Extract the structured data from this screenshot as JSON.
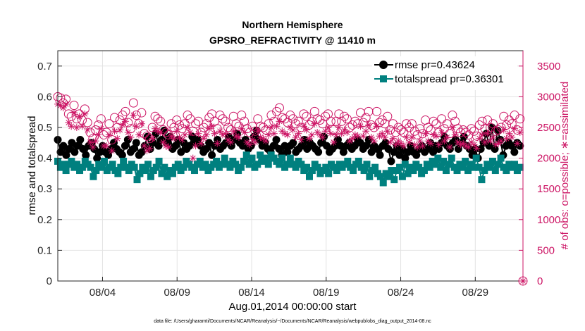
{
  "chart_data": {
    "type": "line",
    "title": [
      "Northern Hemisphere",
      "GPSRO_REFRACTIVITY @ 11410 m"
    ],
    "xlabel": "Aug.01,2014 00:00:00 start",
    "ylabel": "rmse and totalspread",
    "ylabel_right": "# of obs: o=possible; ∗=assimilated",
    "ylim": [
      0,
      0.75
    ],
    "ylim_right": [
      0,
      3750
    ],
    "xlim": [
      1,
      32.2
    ],
    "yticks": [
      "0",
      "0.1",
      "0.2",
      "0.3",
      "0.4",
      "0.5",
      "0.6",
      "0.7"
    ],
    "yticks_right": [
      "0",
      "500",
      "1000",
      "1500",
      "2000",
      "2500",
      "3000",
      "3500"
    ],
    "xticks": [
      "08/04",
      "08/09",
      "08/14",
      "08/19",
      "08/24",
      "08/29"
    ],
    "xtick_days": [
      4,
      9,
      14,
      19,
      24,
      29
    ],
    "grid": true,
    "legend_position": "top-right",
    "series": [
      {
        "name": "rmse pr=0.43624",
        "color": "#000000",
        "marker": "circle",
        "axis": "left",
        "values": [
          0.46,
          0.42,
          0.44,
          0.41,
          0.43,
          0.45,
          0.42,
          0.44,
          0.46,
          0.43,
          0.41,
          0.44,
          0.45,
          0.43,
          0.4,
          0.42,
          0.44,
          0.42,
          0.41,
          0.43,
          0.45,
          0.43,
          0.42,
          0.41,
          0.44,
          0.46,
          0.42,
          0.43,
          0.45,
          0.41,
          0.42,
          0.44,
          0.47,
          0.43,
          0.45,
          0.48,
          0.44,
          0.46,
          0.49,
          0.45,
          0.47,
          0.43,
          0.44,
          0.46,
          0.42,
          0.45,
          0.43,
          0.44,
          0.47,
          0.45,
          0.46,
          0.44,
          0.42,
          0.43,
          0.45,
          0.41,
          0.44,
          0.46,
          0.43,
          0.44,
          0.45,
          0.47,
          0.44,
          0.46,
          0.48,
          0.45,
          0.44,
          0.46,
          0.43,
          0.44,
          0.47,
          0.49,
          0.46,
          0.44,
          0.45,
          0.43,
          0.42,
          0.44,
          0.46,
          0.43,
          0.41,
          0.44,
          0.42,
          0.44,
          0.45,
          0.42,
          0.43,
          0.44,
          0.46,
          0.43,
          0.45,
          0.44,
          0.43,
          0.42,
          0.45,
          0.47,
          0.44,
          0.42,
          0.43,
          0.44,
          0.46,
          0.44,
          0.42,
          0.44,
          0.45,
          0.43,
          0.44,
          0.46,
          0.45,
          0.43,
          0.44,
          0.46,
          0.42,
          0.44,
          0.43,
          0.41,
          0.44,
          0.45,
          0.43,
          0.39,
          0.42,
          0.44,
          0.41,
          0.43,
          0.4,
          0.42,
          0.44,
          0.42,
          0.41,
          0.43,
          0.44,
          0.42,
          0.43,
          0.45,
          0.42,
          0.44,
          0.43,
          0.45,
          0.47,
          0.44,
          0.43,
          0.45,
          0.46,
          0.43,
          0.45,
          0.47,
          0.44,
          0.43,
          0.41,
          0.43,
          0.4,
          0.43,
          0.45,
          0.48,
          0.44,
          0.5,
          0.43,
          0.49,
          0.46,
          0.41,
          0.44,
          0.45,
          0.44,
          0.42,
          0.45,
          0.44
        ]
      },
      {
        "name": "totalspread pr=0.36301",
        "color": "#00807f",
        "marker": "square",
        "axis": "left",
        "values": [
          0.39,
          0.37,
          0.38,
          0.36,
          0.38,
          0.39,
          0.37,
          0.38,
          0.36,
          0.37,
          0.39,
          0.38,
          0.37,
          0.34,
          0.36,
          0.38,
          0.37,
          0.39,
          0.36,
          0.37,
          0.38,
          0.36,
          0.35,
          0.37,
          0.39,
          0.37,
          0.36,
          0.38,
          0.37,
          0.33,
          0.35,
          0.37,
          0.36,
          0.38,
          0.34,
          0.36,
          0.37,
          0.39,
          0.35,
          0.37,
          0.34,
          0.36,
          0.35,
          0.37,
          0.38,
          0.36,
          0.37,
          0.39,
          0.38,
          0.37,
          0.36,
          0.38,
          0.39,
          0.37,
          0.38,
          0.36,
          0.37,
          0.38,
          0.39,
          0.37,
          0.38,
          0.4,
          0.38,
          0.37,
          0.39,
          0.38,
          0.36,
          0.37,
          0.39,
          0.41,
          0.38,
          0.4,
          0.37,
          0.38,
          0.41,
          0.39,
          0.4,
          0.38,
          0.41,
          0.4,
          0.39,
          0.38,
          0.4,
          0.37,
          0.38,
          0.4,
          0.38,
          0.37,
          0.39,
          0.38,
          0.36,
          0.37,
          0.34,
          0.36,
          0.38,
          0.37,
          0.35,
          0.36,
          0.37,
          0.35,
          0.38,
          0.37,
          0.36,
          0.38,
          0.37,
          0.38,
          0.39,
          0.37,
          0.36,
          0.38,
          0.39,
          0.37,
          0.36,
          0.38,
          0.34,
          0.36,
          0.37,
          0.35,
          0.34,
          0.32,
          0.35,
          0.34,
          0.36,
          0.33,
          0.36,
          0.37,
          0.34,
          0.38,
          0.35,
          0.37,
          0.36,
          0.38,
          0.37,
          0.35,
          0.36,
          0.38,
          0.37,
          0.39,
          0.38,
          0.4,
          0.37,
          0.39,
          0.36,
          0.38,
          0.4,
          0.37,
          0.36,
          0.38,
          0.37,
          0.39,
          0.36,
          0.38,
          0.37,
          0.4,
          0.37,
          0.33,
          0.36,
          0.38,
          0.37,
          0.39,
          0.36,
          0.38,
          0.4,
          0.37,
          0.36,
          0.38,
          0.37,
          0.38,
          0.36,
          0.37
        ]
      },
      {
        "name": "possible",
        "color": "#cc1464",
        "marker": "open-circle",
        "axis": "right",
        "values": [
          3000,
          2980,
          2900,
          2960,
          2720,
          2680,
          2860,
          2640,
          2720,
          2620,
          2800,
          2580,
          2420,
          2320,
          2460,
          2540,
          2640,
          2380,
          2420,
          2560,
          2300,
          2660,
          2500,
          2620,
          2700,
          2760,
          2580,
          2480,
          2900,
          2700,
          2560,
          2740,
          2400,
          2360,
          2320,
          2500,
          2680,
          2640,
          2600,
          2460,
          2420,
          2380,
          2560,
          2500,
          2620,
          2540,
          2480,
          2560,
          2700,
          2640,
          2440,
          2560,
          2600,
          2420,
          2500,
          2560,
          2660,
          2720,
          2600,
          2480,
          2700,
          2640,
          2600,
          2500,
          2460,
          2680,
          2560,
          2520,
          2700,
          2600,
          2480,
          2420,
          2520,
          2440,
          2640,
          2520,
          2500,
          2460,
          2560,
          2700,
          2600,
          2760,
          2820,
          2660,
          2640,
          2580,
          2700,
          2640,
          2560,
          2600,
          2500,
          2720,
          2680,
          2540,
          2600,
          2760,
          2640,
          2620,
          2560,
          2680,
          2720,
          2600,
          2460,
          2600,
          2720,
          2600,
          2680,
          2640,
          2500,
          2540,
          2600,
          2560,
          2740,
          2580,
          2660,
          2760,
          2540,
          2500,
          2760,
          2580,
          2620,
          2560,
          2680,
          2460,
          2560,
          2420,
          2500,
          2460,
          2420,
          2560,
          2500,
          2560,
          2440,
          2380,
          2480,
          2400,
          2620,
          2500,
          2460,
          2600,
          2560,
          2420,
          2640,
          2480,
          2560,
          2400,
          2700,
          2600,
          2480,
          2420,
          2460,
          2420,
          2380,
          2480,
          2440,
          2360,
          2540,
          2600,
          2480,
          2620,
          2500,
          2560,
          2440,
          2460,
          2500,
          2680,
          2540,
          2620,
          2560,
          2700,
          2460,
          2640
        ]
      },
      {
        "name": "assimilated",
        "color": "#cc1464",
        "marker": "asterisk",
        "axis": "right",
        "values": [
          2880,
          2860,
          2820,
          2880,
          2580,
          2520,
          2740,
          2500,
          2680,
          2520,
          2720,
          2460,
          2260,
          2180,
          2280,
          2380,
          2480,
          2200,
          2200,
          2380,
          2120,
          2440,
          2320,
          2460,
          2540,
          2600,
          2420,
          2340,
          2700,
          2520,
          2380,
          2560,
          2200,
          2120,
          2160,
          2320,
          2480,
          2440,
          2420,
          2260,
          2200,
          2180,
          2360,
          2320,
          2440,
          2340,
          2300,
          2380,
          2500,
          2420,
          2000,
          2200,
          2400,
          2240,
          2320,
          2380,
          2480,
          2520,
          2400,
          2240,
          2440,
          2380,
          2400,
          2300,
          2260,
          2440,
          2360,
          2340,
          2480,
          2420,
          2260,
          2220,
          2300,
          2260,
          2440,
          2340,
          2320,
          2280,
          2380,
          2500,
          2400,
          2520,
          2600,
          2440,
          2400,
          2380,
          2500,
          2460,
          2340,
          2400,
          2300,
          2520,
          2460,
          2320,
          2380,
          2560,
          2420,
          2380,
          2340,
          2440,
          2500,
          2400,
          2260,
          2380,
          2500,
          2400,
          2460,
          2420,
          2280,
          2320,
          2380,
          2360,
          2520,
          2360,
          2440,
          2540,
          2340,
          2280,
          2520,
          2360,
          2400,
          2340,
          2440,
          2260,
          2320,
          2220,
          2280,
          2240,
          2200,
          2340,
          2260,
          2340,
          2220,
          2180,
          2280,
          2200,
          2400,
          2280,
          2240,
          2380,
          2360,
          2220,
          2420,
          2280,
          2340,
          2180,
          2500,
          2380,
          2260,
          2220,
          2240,
          2200,
          2180,
          2260,
          2220,
          2160,
          2320,
          2380,
          2260,
          2400,
          2280,
          2340,
          2220,
          2240,
          2280,
          2460,
          2320,
          2400,
          2340,
          2480,
          2240,
          2420
        ]
      }
    ]
  },
  "footer": "data file: /Users/gharamti/Documents/NCAR/Reanalysis/~/Documents/NCAR/Reanalysis/webpub/obs_diag_output_2014-08.nc"
}
